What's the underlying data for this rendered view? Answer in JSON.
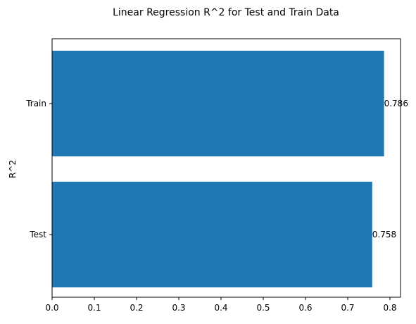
{
  "chart_data": {
    "type": "bar",
    "orientation": "horizontal",
    "title": "Linear Regression R^2 for Test and Train Data",
    "xlabel": "",
    "ylabel": "R^2",
    "categories": [
      "Test",
      "Train"
    ],
    "values": [
      0.758,
      0.786
    ],
    "data_labels": [
      "0.758",
      "0.786"
    ],
    "xlim": [
      0.0,
      0.825
    ],
    "xticks": [
      "0.0",
      "0.1",
      "0.2",
      "0.3",
      "0.4",
      "0.5",
      "0.6",
      "0.7",
      "0.8"
    ],
    "grid": false,
    "legend": "none",
    "bar_color": "#1f77b4"
  }
}
